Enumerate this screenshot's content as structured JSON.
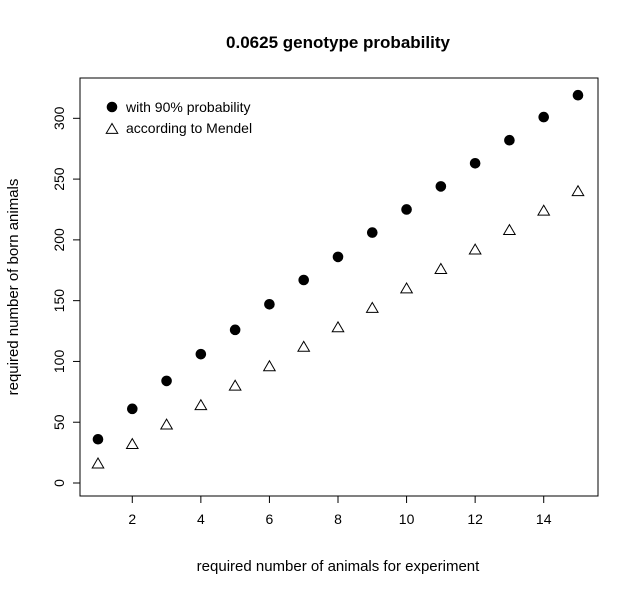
{
  "chart_data": {
    "type": "scatter",
    "title": "0.0625 genotype probability",
    "xlabel": "required number of animals for experiment",
    "ylabel": "required number of born animals",
    "xlim": [
      0.44,
      15.56
    ],
    "ylim": [
      0,
      320
    ],
    "x_ticks": [
      2,
      4,
      6,
      8,
      10,
      12,
      14
    ],
    "y_ticks": [
      0,
      50,
      100,
      150,
      200,
      250,
      300
    ],
    "grid": false,
    "legend_position": "top-left",
    "x": [
      1,
      2,
      3,
      4,
      5,
      6,
      7,
      8,
      9,
      10,
      11,
      12,
      13,
      14,
      15
    ],
    "series": [
      {
        "name": "with 90% probability",
        "marker": "filled-circle",
        "values": [
          36,
          61,
          84,
          106,
          126,
          147,
          167,
          186,
          206,
          225,
          244,
          263,
          282,
          301,
          319
        ]
      },
      {
        "name": "according to Mendel",
        "marker": "open-triangle",
        "values": [
          16,
          32,
          48,
          64,
          80,
          96,
          112,
          128,
          144,
          160,
          176,
          192,
          208,
          224,
          240
        ]
      }
    ]
  }
}
